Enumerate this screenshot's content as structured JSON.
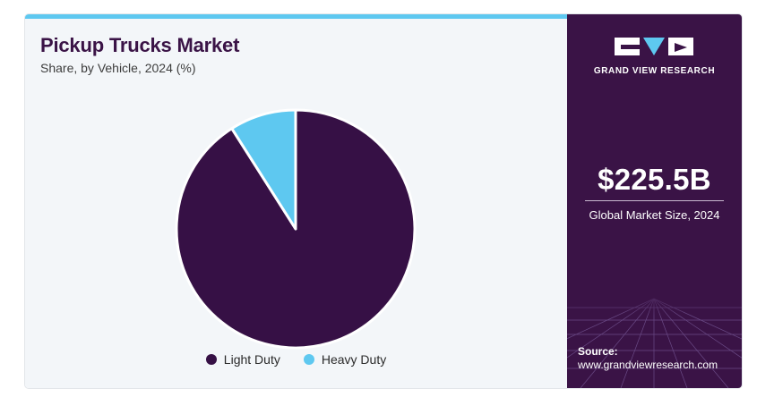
{
  "header": {
    "title": "Pickup Trucks Market",
    "subtitle": "Share, by Vehicle, 2024 (%)"
  },
  "colors": {
    "light_duty": "#361045",
    "heavy_duty": "#5ec8f0",
    "accent_bar": "#5ec8f0",
    "panel_bg": "#3a1346"
  },
  "chart_data": {
    "type": "pie",
    "title": "Pickup Trucks Market",
    "subtitle": "Share, by Vehicle, 2024 (%)",
    "categories": [
      "Light Duty",
      "Heavy Duty"
    ],
    "values": [
      91,
      9
    ],
    "legend_position": "bottom"
  },
  "legend": {
    "items": [
      "Light Duty",
      "Heavy Duty"
    ]
  },
  "brand": {
    "name": "GRAND VIEW RESEARCH",
    "logo_icon": "gvr-logo-icon"
  },
  "stat": {
    "value": "$225.5B",
    "label": "Global Market Size, 2024"
  },
  "source": {
    "label": "Source:",
    "url": "www.grandviewresearch.com"
  }
}
